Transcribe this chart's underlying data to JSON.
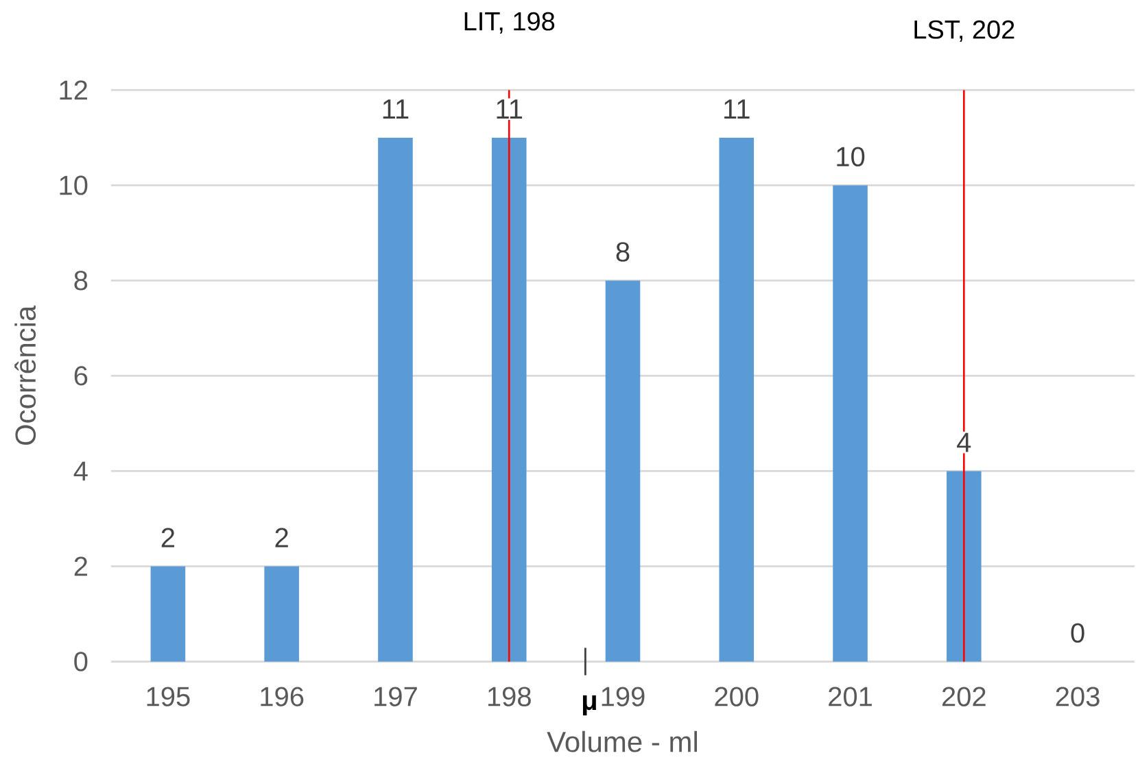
{
  "chart_data": {
    "type": "bar",
    "xlabel": "Volume - ml",
    "ylabel": "Ocorrência",
    "x": [
      195,
      196,
      197,
      198,
      199,
      200,
      201,
      202,
      203
    ],
    "values": [
      2,
      2,
      11,
      11,
      8,
      11,
      10,
      4,
      0
    ],
    "color": "#5b9bd5",
    "xlim": [
      194.5,
      203.5
    ],
    "xticks": [
      195,
      196,
      197,
      198,
      199,
      200,
      201,
      202,
      203
    ],
    "ylim": [
      0,
      12
    ],
    "yticks": [
      0,
      2,
      4,
      6,
      8,
      10,
      12
    ],
    "grid": "y",
    "data_labels": true,
    "ref_lines": [
      {
        "axis": "x",
        "value": 198,
        "label": "LIT, 198",
        "color": "#ff0000"
      },
      {
        "axis": "x",
        "value": 202,
        "label": "LST, 202",
        "color": "#ff0000"
      }
    ],
    "annotations": [
      "μ"
    ]
  }
}
